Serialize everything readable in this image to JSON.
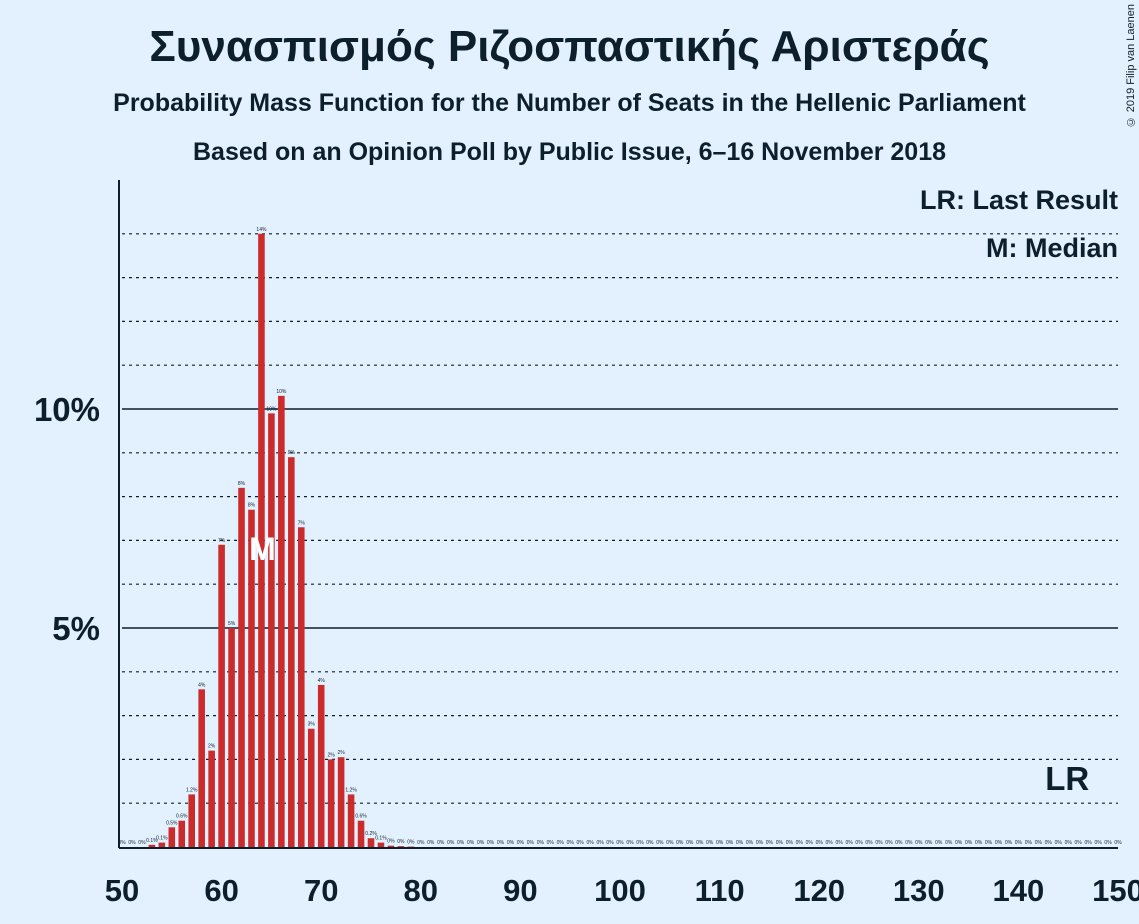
{
  "chart_data": {
    "type": "bar",
    "title": "Συνασπισμός Ριζοσπαστικής Αριστεράς",
    "subtitle": "Probability Mass Function for the Number of Seats in the Hellenic Parliament",
    "subtitle2": "Based on an Opinion Poll by Public Issue, 6–16 November 2018",
    "copyright": "© 2019 Filip van Laenen",
    "legend": {
      "last_result": "LR: Last Result",
      "median": "M: Median",
      "placement": "top-right"
    },
    "last_result_label": "LR",
    "last_result_seat": 145,
    "median_label": "M",
    "median_seat": 64,
    "xlim": [
      50,
      150
    ],
    "ylim": [
      0,
      15
    ],
    "x_ticks": [
      50,
      60,
      70,
      80,
      90,
      100,
      110,
      120,
      130,
      140,
      150
    ],
    "y_ticks": [
      {
        "value": 5,
        "label": "5%"
      },
      {
        "value": 10,
        "label": "10%"
      }
    ],
    "bar_color": "#cc2b2b",
    "seats": [
      50,
      51,
      52,
      53,
      54,
      55,
      56,
      57,
      58,
      59,
      60,
      61,
      62,
      63,
      64,
      65,
      66,
      67,
      68,
      69,
      70,
      71,
      72,
      73,
      74,
      75,
      76,
      77,
      78,
      79,
      80,
      81,
      82,
      83,
      84,
      85,
      86,
      87,
      88,
      89,
      90,
      91,
      92,
      93,
      94,
      95,
      96,
      97,
      98,
      99,
      100,
      101,
      102,
      103,
      104,
      105,
      106,
      107,
      108,
      109,
      110,
      111,
      112,
      113,
      114,
      115,
      116,
      117,
      118,
      119,
      120,
      121,
      122,
      123,
      124,
      125,
      126,
      127,
      128,
      129,
      130,
      131,
      132,
      133,
      134,
      135,
      136,
      137,
      138,
      139,
      140,
      141,
      142,
      143,
      144,
      145,
      146,
      147,
      148,
      149,
      150
    ],
    "values": [
      0,
      0,
      0,
      0.05,
      0.1,
      0.45,
      0.6,
      1.2,
      3.6,
      2.2,
      6.9,
      5.0,
      8.2,
      7.7,
      14.0,
      9.9,
      10.3,
      8.9,
      7.3,
      2.7,
      3.7,
      2.0,
      2.05,
      1.2,
      0.6,
      0.2,
      0.1,
      0.03,
      0.02,
      0.01,
      0,
      0,
      0,
      0,
      0,
      0,
      0,
      0,
      0,
      0,
      0,
      0,
      0,
      0,
      0,
      0,
      0,
      0,
      0,
      0,
      0,
      0,
      0,
      0,
      0,
      0,
      0,
      0,
      0,
      0,
      0,
      0,
      0,
      0,
      0,
      0,
      0,
      0,
      0,
      0,
      0,
      0,
      0,
      0,
      0,
      0,
      0,
      0,
      0,
      0,
      0,
      0,
      0,
      0,
      0,
      0,
      0,
      0,
      0,
      0,
      0,
      0,
      0,
      0,
      0,
      0,
      0,
      0,
      0,
      0,
      0
    ],
    "labels": [
      "0%",
      "0%",
      "0%",
      "0.1%",
      "0.1%",
      "0.5%",
      "0.6%",
      "1.2%",
      "4%",
      "2%",
      "7%",
      "5%",
      "8%",
      "8%",
      "14%",
      "10%",
      "10%",
      "9%",
      "7%",
      "3%",
      "4%",
      "2%",
      "2%",
      "1.2%",
      "0.6%",
      "0.2%",
      "0.1%",
      "0%",
      "0%",
      "0%",
      "0%",
      "0%",
      "0%",
      "0%",
      "0%",
      "0%",
      "0%",
      "0%",
      "0%",
      "0%",
      "0%",
      "0%",
      "0%",
      "0%",
      "0%",
      "0%",
      "0%",
      "0%",
      "0%",
      "0%",
      "0%",
      "0%",
      "0%",
      "0%",
      "0%",
      "0%",
      "0%",
      "0%",
      "0%",
      "0%",
      "0%",
      "0%",
      "0%",
      "0%",
      "0%",
      "0%",
      "0%",
      "0%",
      "0%",
      "0%",
      "0%",
      "0%",
      "0%",
      "0%",
      "0%",
      "0%",
      "0%",
      "0%",
      "0%",
      "0%",
      "0%",
      "0%",
      "0%",
      "0%",
      "0%",
      "0%",
      "0%",
      "0%",
      "0%",
      "0%",
      "0%",
      "0%",
      "0%",
      "0%",
      "0%",
      "0%",
      "0%",
      "0%",
      "0%",
      "0%",
      "0%"
    ]
  }
}
